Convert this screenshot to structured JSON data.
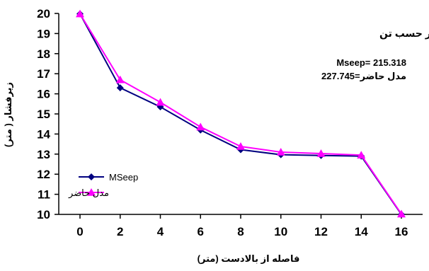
{
  "chart_data": {
    "type": "line",
    "x": [
      0,
      2,
      4,
      6,
      8,
      10,
      12,
      14,
      16
    ],
    "xlabel": "فاصله از بالادست (متر)",
    "ylabel": "زيرفشار ( متر)",
    "xlim": [
      0,
      16
    ],
    "ylim": [
      10,
      20
    ],
    "x_ticks": [
      "0",
      "2",
      "4",
      "6",
      "8",
      "10",
      "12",
      "14",
      "16"
    ],
    "y_ticks": [
      "10",
      "11",
      "12",
      "13",
      "14",
      "15",
      "16",
      "17",
      "18",
      "19",
      "20"
    ],
    "grid": false,
    "legend_position": "bottom-left",
    "annotations": {
      "title": "زيرفشار كل بر حسب تن",
      "line1": "Mseep= 215.318",
      "line2": "مدل حاضر=227.745"
    },
    "series": [
      {
        "name": "MSeep",
        "color": "#000080",
        "marker": "diamond",
        "values": [
          19.98,
          16.3,
          15.35,
          14.2,
          13.22,
          12.97,
          12.93,
          12.9,
          10.0
        ]
      },
      {
        "name": "مدل حاضر",
        "color": "#ff00ff",
        "marker": "triangle",
        "values": [
          19.98,
          16.7,
          15.58,
          14.35,
          13.38,
          13.1,
          13.03,
          12.95,
          10.02
        ]
      }
    ]
  }
}
